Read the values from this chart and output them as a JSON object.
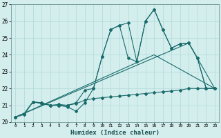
{
  "xlabel": "Humidex (Indice chaleur)",
  "bg_color": "#d4eeee",
  "grid_color": "#b0d8d8",
  "line_color": "#1a6b6b",
  "xlim": [
    -0.5,
    23.5
  ],
  "ylim": [
    20,
    27
  ],
  "xticks": [
    0,
    1,
    2,
    3,
    4,
    5,
    6,
    7,
    8,
    9,
    10,
    11,
    12,
    13,
    14,
    15,
    16,
    17,
    18,
    19,
    20,
    21,
    22,
    23
  ],
  "yticks": [
    20,
    21,
    22,
    23,
    24,
    25,
    26,
    27
  ],
  "line1_x": [
    0,
    1,
    2,
    3,
    4,
    5,
    6,
    7,
    8,
    9,
    10,
    11,
    12,
    13,
    14,
    15,
    16,
    17,
    18,
    19,
    20,
    21,
    22,
    23
  ],
  "line1_y": [
    20.3,
    20.5,
    21.2,
    21.15,
    21.0,
    21.0,
    20.9,
    20.65,
    21.15,
    22.0,
    23.9,
    25.5,
    25.75,
    25.9,
    23.6,
    26.0,
    26.7,
    25.5,
    24.4,
    24.65,
    24.7,
    23.8,
    22.0,
    22.0
  ],
  "line2_x": [
    0,
    1,
    2,
    3,
    4,
    5,
    6,
    7,
    8,
    9,
    10,
    11,
    12,
    13,
    14,
    15,
    16,
    17,
    18,
    19,
    20,
    21,
    22,
    23
  ],
  "line2_y": [
    20.3,
    20.5,
    21.2,
    21.1,
    21.0,
    21.05,
    21.0,
    21.15,
    21.9,
    22.0,
    23.9,
    25.5,
    25.75,
    23.8,
    23.6,
    26.0,
    26.7,
    25.5,
    24.4,
    24.65,
    24.7,
    23.8,
    22.0,
    22.0
  ],
  "line3_x": [
    0,
    16,
    23
  ],
  "line3_y": [
    20.3,
    24.0,
    22.0
  ],
  "line4_x": [
    0,
    20,
    23
  ],
  "line4_y": [
    20.3,
    24.7,
    22.0
  ],
  "line5_x": [
    0,
    1,
    2,
    3,
    4,
    5,
    6,
    7,
    8,
    9,
    10,
    11,
    12,
    13,
    14,
    15,
    16,
    17,
    18,
    19,
    20,
    21,
    22,
    23
  ],
  "line5_y": [
    20.3,
    20.45,
    21.2,
    21.15,
    21.0,
    21.0,
    21.0,
    21.1,
    21.3,
    21.4,
    21.45,
    21.5,
    21.55,
    21.6,
    21.65,
    21.7,
    21.75,
    21.8,
    21.85,
    21.9,
    22.0,
    22.0,
    22.0,
    22.0
  ],
  "markersize": 2.0,
  "linewidth": 0.8
}
